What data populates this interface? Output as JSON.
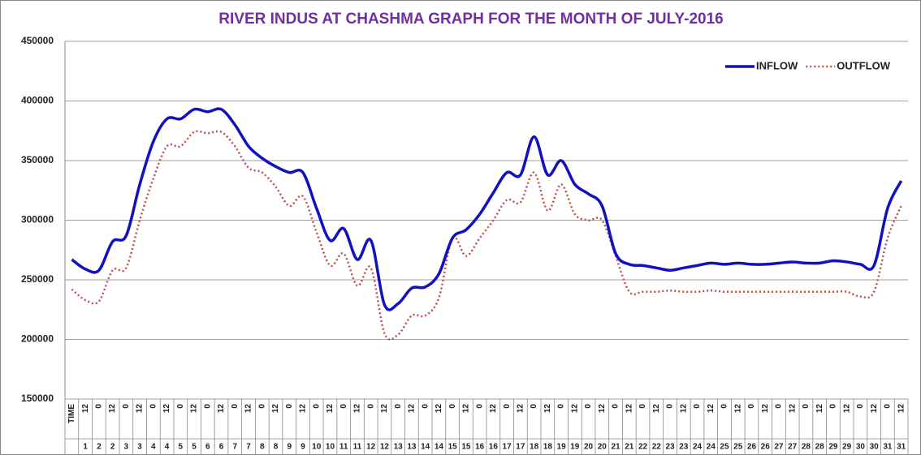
{
  "chart_data": {
    "type": "line",
    "title": "RIVER  INDUS  AT  CHASHMA   GRAPH  FOR THE MONTH OF JULY-2016",
    "categories": [
      "TIME",
      "12",
      "0",
      "12",
      "0",
      "12",
      "0",
      "12",
      "0",
      "12",
      "0",
      "12",
      "0",
      "12",
      "0",
      "12",
      "0",
      "12",
      "0",
      "12",
      "0",
      "12",
      "0",
      "12",
      "0",
      "12",
      "0",
      "12",
      "0",
      "12",
      "0",
      "12",
      "0",
      "12",
      "0",
      "12",
      "0",
      "12",
      "0",
      "12",
      "0",
      "12",
      "0",
      "12",
      "0",
      "12",
      "0",
      "12",
      "0",
      "12",
      "0",
      "12",
      "0",
      "12",
      "0",
      "12",
      "0",
      "12",
      "0",
      "12",
      "0",
      "12"
    ],
    "days": [
      null,
      "1",
      "2",
      "2",
      "3",
      "3",
      "4",
      "4",
      "5",
      "5",
      "6",
      "6",
      "7",
      "7",
      "8",
      "8",
      "9",
      "9",
      "10",
      "10",
      "11",
      "11",
      "12",
      "12",
      "13",
      "13",
      "14",
      "14",
      "15",
      "15",
      "16",
      "16",
      "17",
      "17",
      "18",
      "18",
      "19",
      "19",
      "20",
      "20",
      "21",
      "21",
      "22",
      "22",
      "23",
      "23",
      "24",
      "24",
      "25",
      "25",
      "26",
      "26",
      "27",
      "27",
      "28",
      "28",
      "29",
      "29",
      "30",
      "30",
      "31",
      "31"
    ],
    "series": [
      {
        "name": "INFLOW",
        "color": "#1111c0",
        "style": "solid",
        "values": [
          267000,
          259000,
          258000,
          282000,
          287000,
          330000,
          366000,
          385000,
          385000,
          393000,
          391000,
          393000,
          380000,
          362000,
          352000,
          345000,
          340000,
          340000,
          310000,
          283000,
          293000,
          267000,
          283000,
          229000,
          230000,
          243000,
          244000,
          255000,
          285000,
          292000,
          305000,
          323000,
          340000,
          338000,
          370000,
          338000,
          350000,
          330000,
          322000,
          312000,
          272000,
          263000,
          262000,
          260000,
          258000,
          260000,
          262000,
          264000,
          263000,
          264000,
          263000,
          263000,
          264000,
          265000,
          264000,
          264000,
          266000,
          265000,
          263000,
          262000,
          310000,
          333000
        ]
      },
      {
        "name": "OUTFLOW",
        "color": "#c0504d",
        "style": "dotted",
        "values": [
          242000,
          233000,
          232000,
          258000,
          260000,
          300000,
          335000,
          362000,
          362000,
          374000,
          373000,
          374000,
          362000,
          344000,
          340000,
          328000,
          312000,
          320000,
          290000,
          262000,
          272000,
          245000,
          260000,
          205000,
          204000,
          220000,
          220000,
          235000,
          285000,
          270000,
          285000,
          300000,
          317000,
          315000,
          340000,
          308000,
          330000,
          305000,
          300000,
          300000,
          270000,
          240000,
          240000,
          240000,
          241000,
          240000,
          240000,
          241000,
          240000,
          240000,
          240000,
          240000,
          240000,
          240000,
          240000,
          240000,
          240000,
          240000,
          236000,
          240000,
          285000,
          312000
        ]
      }
    ],
    "ylim": [
      150000,
      450000
    ],
    "yticks": [
      150000,
      200000,
      250000,
      300000,
      350000,
      400000,
      450000
    ],
    "grid": true,
    "legend": "top-right"
  }
}
